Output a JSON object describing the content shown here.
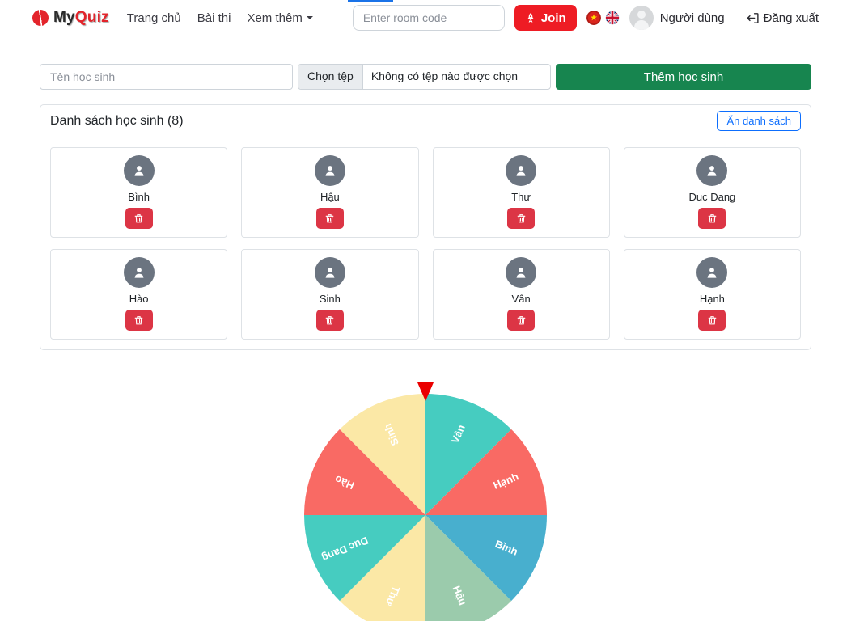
{
  "navbar": {
    "brand": {
      "my": "My",
      "quiz": "Quiz"
    },
    "links": [
      {
        "label": "Trang chủ"
      },
      {
        "label": "Bài thi"
      },
      {
        "label": "Xem thêm"
      }
    ],
    "room_input_placeholder": "Enter room code",
    "join_label": "Join",
    "user_label": "Người dùng",
    "logout_label": "Đăng xuất"
  },
  "form": {
    "name_placeholder": "Tên học sinh",
    "file_button_label": "Chọn tệp",
    "file_status": "Không có tệp nào được chọn",
    "submit_label": "Thêm học sinh"
  },
  "student_list": {
    "title": "Danh sách học sinh (8)",
    "hide_button_label": "Ẩn danh sách",
    "students": [
      "Bình",
      "Hậu",
      "Thư",
      "Duc Dang",
      "Hào",
      "Sinh",
      "Vân",
      "Hạnh"
    ]
  },
  "wheel": {
    "pointer_color": "#ea0000",
    "label_color": "#ffffff",
    "segments": [
      {
        "name": "Vân",
        "color": "#46ccc0"
      },
      {
        "name": "Hạnh",
        "color": "#f96a64"
      },
      {
        "name": "Bình",
        "color": "#48afce"
      },
      {
        "name": "Hậu",
        "color": "#9bcbac"
      },
      {
        "name": "Thư",
        "color": "#fbe8a6"
      },
      {
        "name": "Duc Dang",
        "color": "#46ccc0"
      },
      {
        "name": "Hào",
        "color": "#f96a64"
      },
      {
        "name": "Sinh",
        "color": "#fbe8a6"
      }
    ]
  },
  "colors": {
    "brand_red": "#e3242b",
    "join_red": "#ee1c24",
    "submit_green": "#17854f",
    "delete_red": "#dc3545",
    "outline_blue": "#0d6efd",
    "top_accent_blue": "#1a73e8"
  }
}
